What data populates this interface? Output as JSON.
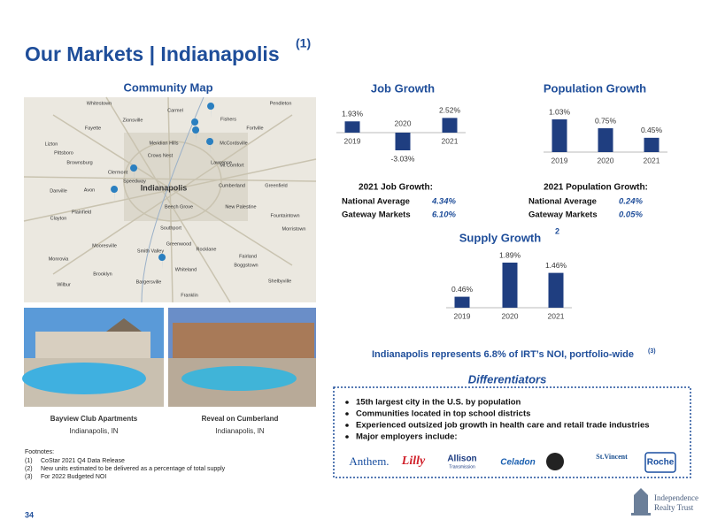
{
  "header": {
    "title": "Our Markets | Indianapolis",
    "title_note": "(1)"
  },
  "community_map": {
    "title": "Community Map",
    "places": [
      "Whitestown",
      "Carmel",
      "Fishers",
      "Pendleton",
      "Zionsville",
      "Fortville",
      "Fayette",
      "Meridian Hills",
      "McCordsville",
      "Lizton",
      "Pittsboro",
      "Crows Nest",
      "Lawrence",
      "Brownsburg",
      "Mt Comfort",
      "Clermont",
      "Speedway",
      "Indianapolis",
      "Cumberland",
      "Greenfield",
      "Danville",
      "Avon",
      "Plainfield",
      "Beech Grove",
      "New Palestine",
      "Clayton",
      "Fountaintown",
      "Southport",
      "Morristown",
      "Mooresville",
      "Greenwood",
      "Smith Valley",
      "Rocklane",
      "Monrovia",
      "Fairland",
      "Boggstown",
      "Brooklyn",
      "Whiteland",
      "Wilbur",
      "Bargersville",
      "Shelbyville",
      "Franklin"
    ]
  },
  "properties": [
    {
      "name": "Bayview Club Apartments",
      "location": "Indianapolis, IN"
    },
    {
      "name": "Reveal on Cumberland",
      "location": "Indianapolis, IN"
    }
  ],
  "footnotes": {
    "title": "Footnotes:",
    "items": [
      [
        "(1)",
        "CoStar 2021 Q4 Data Release"
      ],
      [
        "(2)",
        "New units estimated to be delivered as a percentage of total supply"
      ],
      [
        "(3)",
        "For 2022 Budgeted NOI"
      ]
    ]
  },
  "charts": {
    "job_growth": {
      "type": "bar",
      "title": "Job Growth",
      "categories": [
        "2019",
        "2020",
        "2021"
      ],
      "values": [
        1.93,
        -3.03,
        2.52
      ],
      "value_labels": [
        "1.93%",
        "-3.03%",
        "2.52%"
      ],
      "color": "#1f3e80"
    },
    "population_growth": {
      "type": "bar",
      "title": "Population Growth",
      "categories": [
        "2019",
        "2020",
        "2021"
      ],
      "values": [
        1.03,
        0.75,
        0.45
      ],
      "value_labels": [
        "1.03%",
        "0.75%",
        "0.45%"
      ],
      "color": "#1f3e80"
    },
    "supply_growth": {
      "type": "bar",
      "title": "Supply Growth",
      "title_note": "2",
      "categories": [
        "2019",
        "2020",
        "2021"
      ],
      "values": [
        0.46,
        1.89,
        1.46
      ],
      "value_labels": [
        "0.46%",
        "1.89%",
        "1.46%"
      ],
      "color": "#1f3e80"
    }
  },
  "stats": {
    "job": {
      "title": "2021 Job Growth:",
      "rows": [
        [
          "National Average",
          "4.34%"
        ],
        [
          "Gateway Markets",
          "6.10%"
        ]
      ]
    },
    "population": {
      "title": "2021 Population Growth:",
      "rows": [
        [
          "National Average",
          "0.24%"
        ],
        [
          "Gateway Markets",
          "0.05%"
        ]
      ]
    }
  },
  "statement": {
    "text": "Indianapolis represents 6.8% of IRT’s NOI, portfolio-wide",
    "note": "(3)"
  },
  "differentiators": {
    "title": "Differentiators",
    "bullets": [
      "15th largest city in the U.S. by population",
      "Communities located in top school districts",
      "Experienced outsized job growth in health care and retail trade industries",
      "Major employers include:"
    ],
    "logos": [
      "Anthem.",
      "Lilly",
      "Allison",
      "Transmission",
      "Celadon",
      "St.Vincent",
      "Roche"
    ]
  },
  "footer": {
    "page_number": "34",
    "brand": [
      "Independence",
      "Realty Trust"
    ]
  }
}
